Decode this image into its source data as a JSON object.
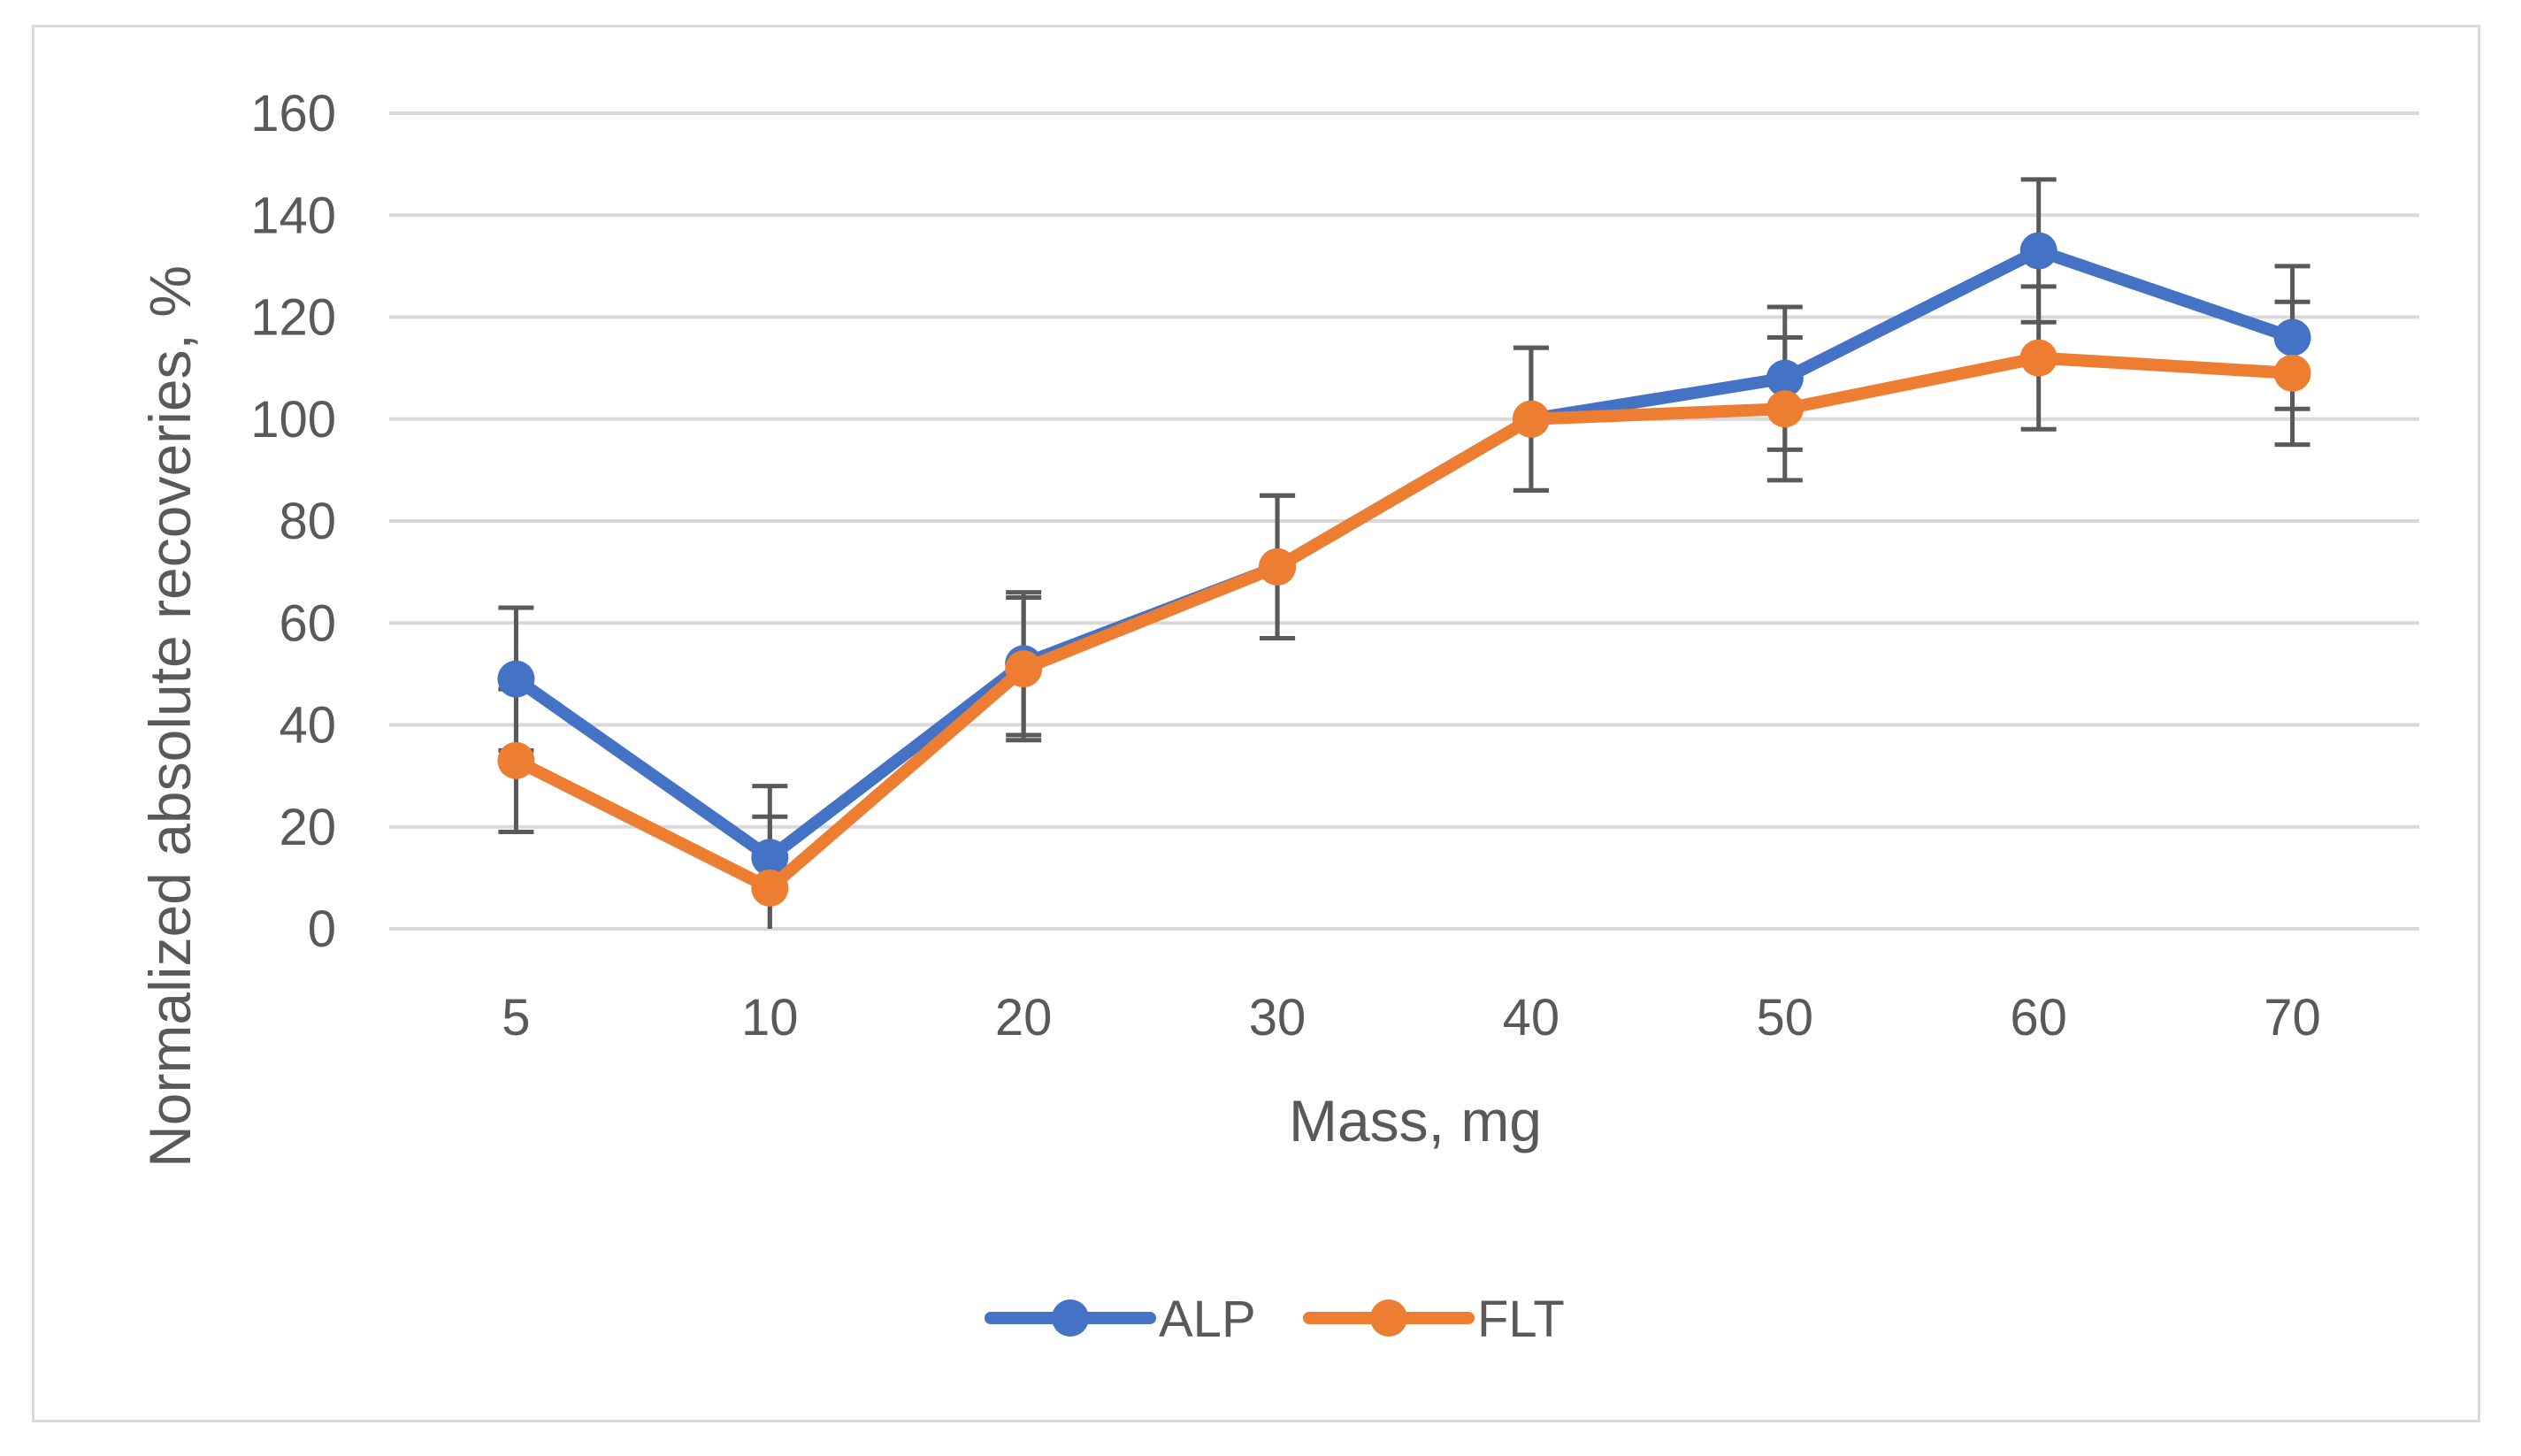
{
  "chart_data": {
    "type": "line",
    "title": "",
    "xlabel": "Mass, mg",
    "ylabel": "Normalized absolute recoveries, %",
    "categories": [
      "5",
      "10",
      "20",
      "30",
      "40",
      "50",
      "60",
      "70"
    ],
    "ylim": [
      0,
      160
    ],
    "yticks": [
      0,
      20,
      40,
      60,
      80,
      100,
      120,
      140,
      160
    ],
    "grid": true,
    "legend_position": "bottom",
    "series": [
      {
        "name": "ALP",
        "color": "#4472C4",
        "values": [
          49,
          14,
          52,
          71,
          100,
          108,
          133,
          116
        ],
        "errors": [
          14,
          14,
          14,
          14,
          14,
          14,
          14,
          14
        ]
      },
      {
        "name": "FLT",
        "color": "#ED7D31",
        "values": [
          33,
          8,
          51,
          71,
          100,
          102,
          112,
          109
        ],
        "errors": [
          14,
          14,
          14,
          14,
          14,
          14,
          14,
          14
        ]
      }
    ],
    "errorbar_color": "#595959"
  }
}
